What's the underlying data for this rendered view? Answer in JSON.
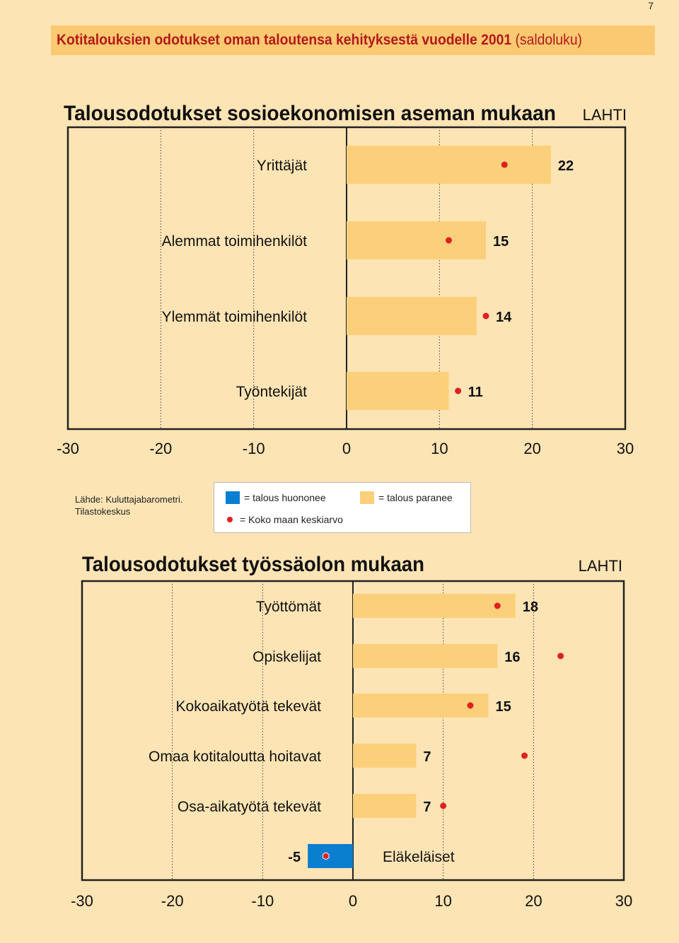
{
  "page_number": "7",
  "banner": {
    "title": "Kotitalouksien odotukset oman taloutensa kehityksestä vuodelle 2001",
    "unit": "(saldoluku)"
  },
  "source": {
    "line1": "Lähde: Kuluttajabarometri.",
    "line2": "Tilastokeskus"
  },
  "legend": {
    "worse": "= talous huononee",
    "better": "= talous paranee",
    "average": "= Koko maan keskiarvo"
  },
  "colors": {
    "better": "#fcd07a",
    "worse": "#0a7fd0",
    "average_dot": "#e02020"
  },
  "chart_data": [
    {
      "type": "bar",
      "orientation": "horizontal",
      "title": "Talousodotukset sosioekonomisen aseman mukaan",
      "region": "LAHTI",
      "xlim": [
        -30,
        30
      ],
      "xticks": [
        "-30",
        "-20",
        "-10",
        "0",
        "10",
        "20",
        "30"
      ],
      "categories": [
        "Yrittäjät",
        "Alemmat toimihenkilöt",
        "Ylemmät toimihenkilöt",
        "Työntekijät"
      ],
      "values": [
        22,
        15,
        14,
        11
      ],
      "value_labels": [
        "22",
        "15",
        "14",
        "11"
      ],
      "national_average": [
        17,
        11,
        15,
        12
      ]
    },
    {
      "type": "bar",
      "orientation": "horizontal",
      "title": "Talousodotukset työssäolon mukaan",
      "region": "LAHTI",
      "xlim": [
        -30,
        30
      ],
      "xticks": [
        "-30",
        "-20",
        "-10",
        "0",
        "10",
        "20",
        "30"
      ],
      "categories": [
        "Työttömät",
        "Opiskelijat",
        "Kokoaikatyötä tekevät",
        "Omaa kotitaloutta hoitavat",
        "Osa-aikatyötä tekevät",
        "Eläkeläiset"
      ],
      "values": [
        18,
        16,
        15,
        7,
        7,
        -5
      ],
      "value_labels": [
        "18",
        "16",
        "15",
        "7",
        "7",
        "-5"
      ],
      "national_average": [
        16,
        23,
        13,
        19,
        10,
        -3
      ]
    }
  ]
}
